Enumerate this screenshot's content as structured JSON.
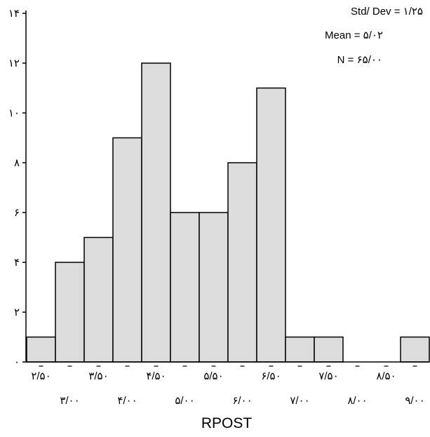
{
  "chart_data": {
    "type": "bar",
    "histogram": true,
    "bin_width": 0.5,
    "bin_centers": [
      2.5,
      3.0,
      3.5,
      4.0,
      4.5,
      5.0,
      5.5,
      6.0,
      6.5,
      7.0,
      7.5,
      8.0,
      8.5,
      9.0
    ],
    "values": [
      1,
      4,
      5,
      9,
      12,
      6,
      6,
      8,
      11,
      1,
      1,
      0,
      0,
      1
    ],
    "ylim": [
      0,
      14
    ],
    "y_ticks": [
      {
        "value": 0,
        "label": "۰"
      },
      {
        "value": 2,
        "label": "۲"
      },
      {
        "value": 4,
        "label": "۴"
      },
      {
        "value": 6,
        "label": "۶"
      },
      {
        "value": 8,
        "label": "۸"
      },
      {
        "value": 10,
        "label": "۱۰"
      },
      {
        "value": 12,
        "label": "۱۲"
      },
      {
        "value": 14,
        "label": "۱۴"
      }
    ],
    "x_ticks_row1": [
      {
        "value": 2.5,
        "label": "۲/۵۰"
      },
      {
        "value": 3.5,
        "label": "۳/۵۰"
      },
      {
        "value": 4.5,
        "label": "۴/۵۰"
      },
      {
        "value": 5.5,
        "label": "۵/۵۰"
      },
      {
        "value": 6.5,
        "label": "۶/۵۰"
      },
      {
        "value": 7.5,
        "label": "۷/۵۰"
      },
      {
        "value": 8.5,
        "label": "۸/۵۰"
      }
    ],
    "x_ticks_row2": [
      {
        "value": 3.0,
        "label": "۳/۰۰"
      },
      {
        "value": 4.0,
        "label": "۴/۰۰"
      },
      {
        "value": 5.0,
        "label": "۵/۰۰"
      },
      {
        "value": 6.0,
        "label": "۶/۰۰"
      },
      {
        "value": 7.0,
        "label": "۷/۰۰"
      },
      {
        "value": 8.0,
        "label": "۸/۰۰"
      },
      {
        "value": 9.0,
        "label": "۹/۰۰"
      }
    ],
    "xlabel": "RPOST",
    "ylabel": "",
    "title": "",
    "stats": {
      "std_dev": "Std/ Dev = ۱/۲۵",
      "mean": "Mean = ۵/۰۲",
      "n": "N = ۶۵/۰۰"
    },
    "stats_placement": "top-right",
    "grid": false,
    "bar_color": "#dcdcdc",
    "edge_color": "#000000"
  }
}
